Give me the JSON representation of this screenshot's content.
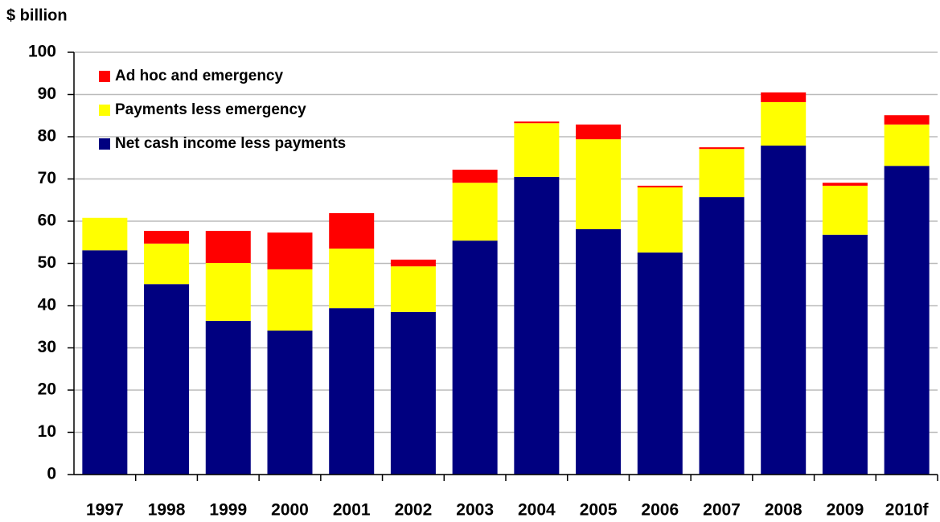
{
  "chart_data": {
    "type": "stacked-bar",
    "y_label": "$ billion",
    "categories": [
      "1997",
      "1998",
      "1999",
      "2000",
      "2001",
      "2002",
      "2003",
      "2004",
      "2005",
      "2006",
      "2007",
      "2008",
      "2009",
      "2010f"
    ],
    "series": [
      {
        "name": "Net cash income less payments",
        "color": "#000080",
        "values": [
          53.1,
          45.1,
          36.4,
          34.1,
          39.4,
          38.5,
          55.4,
          70.5,
          58.1,
          52.6,
          65.7,
          77.9,
          56.8,
          73.1
        ]
      },
      {
        "name": "Payments less emergency",
        "color": "#ffff00",
        "values": [
          7.7,
          9.6,
          13.7,
          14.5,
          14.1,
          10.8,
          13.7,
          12.7,
          21.3,
          15.4,
          11.4,
          10.3,
          11.6,
          9.8
        ]
      },
      {
        "name": "Ad hoc and emergency",
        "color": "#ff0000",
        "values": [
          0,
          3.0,
          7.6,
          8.7,
          8.4,
          1.6,
          3.1,
          0.4,
          3.5,
          0.4,
          0.4,
          2.3,
          0.7,
          2.2
        ]
      }
    ],
    "ylim": [
      0,
      100
    ],
    "yticks": [
      0,
      10,
      20,
      30,
      40,
      50,
      60,
      70,
      80,
      90,
      100
    ],
    "grid": true,
    "legend": "top-left"
  }
}
